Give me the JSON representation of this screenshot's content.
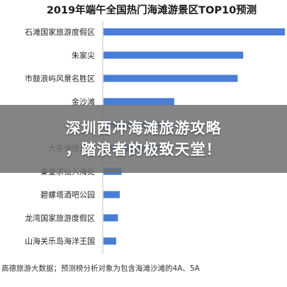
{
  "chart_data": {
    "type": "bar",
    "orientation": "horizontal",
    "title": "2019年端午全国热门海滩游景区TOP10预测",
    "categories": [
      "石滩国家旅游度假区",
      "朱家尖",
      "市鼓浪屿风景名胜区",
      "金沙滩",
      "",
      "大东海旅游区",
      "秦皇求仙入海处",
      "碧螺塔酒吧公园",
      "龙湾国家旅游度假区",
      "山海关乐岛海洋王国"
    ],
    "values": [
      100,
      77,
      74,
      39,
      37,
      34,
      10,
      9,
      8,
      7
    ],
    "bar_color": "#4a7ed6",
    "xlim": [
      0,
      100
    ],
    "footnote": "高德旅游大数据；预测榜分析对象为包含海滩沙滩的4A、5A"
  },
  "banner": {
    "line1": "深圳西冲海滩旅游攻略",
    "line2": "，踏浪者的极致天堂！"
  }
}
